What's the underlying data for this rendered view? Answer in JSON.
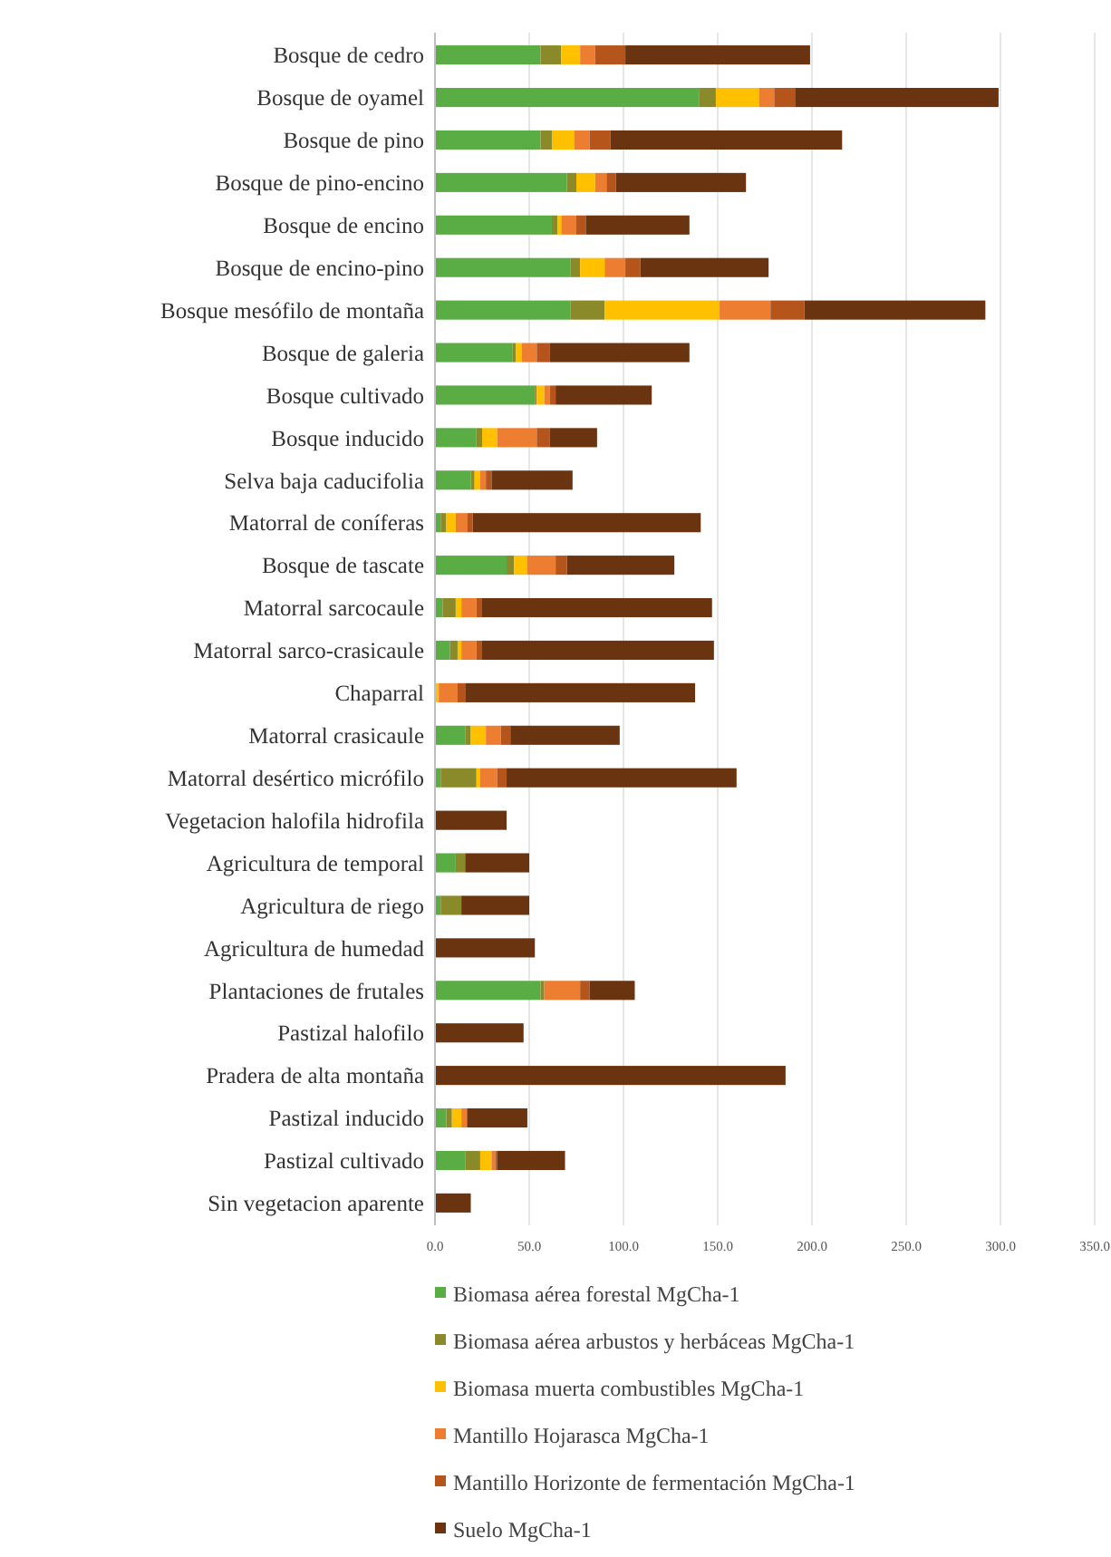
{
  "chart_data": {
    "type": "bar",
    "orientation": "horizontal",
    "stacked": true,
    "grid": "x",
    "legend": "bottom",
    "categories": [
      "Bosque de cedro",
      "Bosque de oyamel",
      "Bosque de pino",
      "Bosque de pino-encino",
      "Bosque de encino",
      "Bosque de encino-pino",
      "Bosque mesófilo de montaña",
      "Bosque de galeria",
      "Bosque cultivado",
      "Bosque inducido",
      "Selva baja caducifolia",
      "Matorral de coníferas",
      "Bosque de tascate",
      "Matorral sarcocaule",
      "Matorral sarco-crasicaule",
      "Chaparral",
      "Matorral crasicaule",
      "Matorral desértico micrófilo",
      "Vegetacion halofila hidrofila",
      "Agricultura de temporal",
      "Agricultura de riego",
      "Agricultura de humedad",
      "Plantaciones de frutales",
      "Pastizal halofilo",
      "Pradera de alta montaña",
      "Pastizal inducido",
      "Pastizal cultivado",
      "Sin vegetacion aparente"
    ],
    "xlim": [
      0,
      350
    ],
    "xticks": [
      {
        "value": 0,
        "label": "0.0"
      },
      {
        "value": 50,
        "label": "50.0"
      },
      {
        "value": 100,
        "label": "100.0"
      },
      {
        "value": 150,
        "label": "150.0"
      },
      {
        "value": 200,
        "label": "200.0"
      },
      {
        "value": 250,
        "label": "250.0"
      },
      {
        "value": 300,
        "label": "300.0"
      },
      {
        "value": 350,
        "label": "350.0"
      }
    ],
    "series": [
      {
        "name": "Biomasa aérea forestal MgCha-1",
        "color": "#5aac44",
        "values": [
          56,
          140,
          56,
          70,
          62,
          72,
          72,
          41,
          53,
          22,
          19,
          3,
          38,
          4,
          8,
          0,
          16,
          3,
          0,
          11,
          3,
          0,
          56,
          0,
          0,
          6,
          16,
          0
        ]
      },
      {
        "name": "Biomasa aérea arbustos y herbáceas MgCha-1",
        "color": "#8a8a2a",
        "values": [
          11,
          9,
          6,
          5,
          3,
          5,
          18,
          2,
          1,
          3,
          2,
          3,
          4,
          7,
          4,
          0,
          3,
          19,
          0,
          5,
          11,
          0,
          2,
          0,
          0,
          3,
          8,
          0
        ]
      },
      {
        "name": "Biomasa muerta combustibles MgCha-1",
        "color": "#ffc000",
        "values": [
          10,
          23,
          12,
          10,
          2,
          13,
          61,
          3,
          4,
          8,
          3,
          5,
          7,
          3,
          2,
          2,
          8,
          2,
          0,
          0,
          0,
          0,
          0,
          0,
          0,
          5,
          6,
          0
        ]
      },
      {
        "name": "Mantillo Hojarasca MgCha-1",
        "color": "#ed7d31",
        "values": [
          8,
          8,
          8,
          6,
          8,
          11,
          27,
          8,
          3,
          21,
          3,
          6,
          15,
          8,
          8,
          10,
          8,
          9,
          0,
          0,
          0,
          0,
          19,
          0,
          0,
          3,
          2,
          0
        ]
      },
      {
        "name": "Mantillo Horizonte de fermentación MgCha-1",
        "color": "#b5541b",
        "values": [
          16,
          11,
          11,
          5,
          5,
          8,
          18,
          7,
          3,
          7,
          3,
          3,
          6,
          3,
          3,
          4,
          5,
          5,
          0,
          0,
          0,
          0,
          5,
          0,
          0,
          0,
          1,
          0
        ]
      },
      {
        "name": "Suelo  MgCha-1",
        "color": "#6b3410",
        "values": [
          98,
          108,
          123,
          69,
          55,
          68,
          96,
          74,
          51,
          25,
          43,
          121,
          57,
          122,
          123,
          122,
          58,
          122,
          38,
          34,
          36,
          53,
          24,
          47,
          186,
          32,
          36,
          19
        ]
      }
    ]
  }
}
